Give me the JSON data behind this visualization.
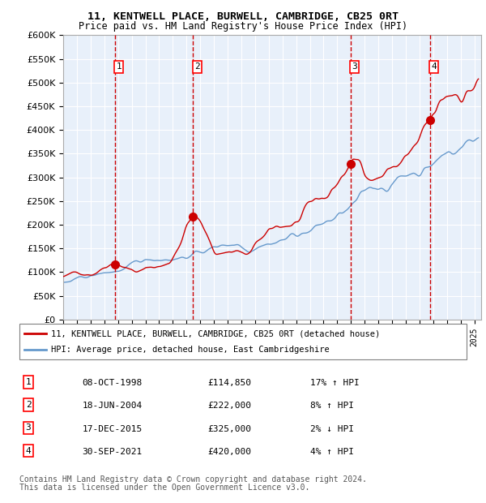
{
  "title1": "11, KENTWELL PLACE, BURWELL, CAMBRIDGE, CB25 0RT",
  "title2": "Price paid vs. HM Land Registry's House Price Index (HPI)",
  "xlabel": "",
  "ylabel": "",
  "ylim": [
    0,
    600000
  ],
  "yticks": [
    0,
    50000,
    100000,
    150000,
    200000,
    250000,
    300000,
    350000,
    400000,
    450000,
    500000,
    550000,
    600000
  ],
  "xlim_start": 1995.0,
  "xlim_end": 2025.5,
  "bg_color": "#ddeeff",
  "plot_bg": "#e8f0fa",
  "grid_color": "#ffffff",
  "red_line_color": "#cc0000",
  "blue_line_color": "#6699cc",
  "dashed_color": "#cc0000",
  "sale_points": [
    {
      "year": 1998.77,
      "price": 114850,
      "label": "1"
    },
    {
      "year": 2004.47,
      "price": 222000,
      "label": "2"
    },
    {
      "year": 2015.96,
      "price": 325000,
      "label": "3"
    },
    {
      "year": 2021.75,
      "price": 420000,
      "label": "4"
    }
  ],
  "legend_entries": [
    {
      "label": "11, KENTWELL PLACE, BURWELL, CAMBRIDGE, CB25 0RT (detached house)",
      "color": "#cc0000"
    },
    {
      "label": "HPI: Average price, detached house, East Cambridgeshire",
      "color": "#6699cc"
    }
  ],
  "table_rows": [
    {
      "num": "1",
      "date": "08-OCT-1998",
      "price": "£114,850",
      "pct": "17% ↑ HPI"
    },
    {
      "num": "2",
      "date": "18-JUN-2004",
      "price": "£222,000",
      "pct": "8% ↑ HPI"
    },
    {
      "num": "3",
      "date": "17-DEC-2015",
      "price": "£325,000",
      "pct": "2% ↓ HPI"
    },
    {
      "num": "4",
      "date": "30-SEP-2021",
      "price": "£420,000",
      "pct": "4% ↑ HPI"
    }
  ],
  "footnote1": "Contains HM Land Registry data © Crown copyright and database right 2024.",
  "footnote2": "This data is licensed under the Open Government Licence v3.0."
}
